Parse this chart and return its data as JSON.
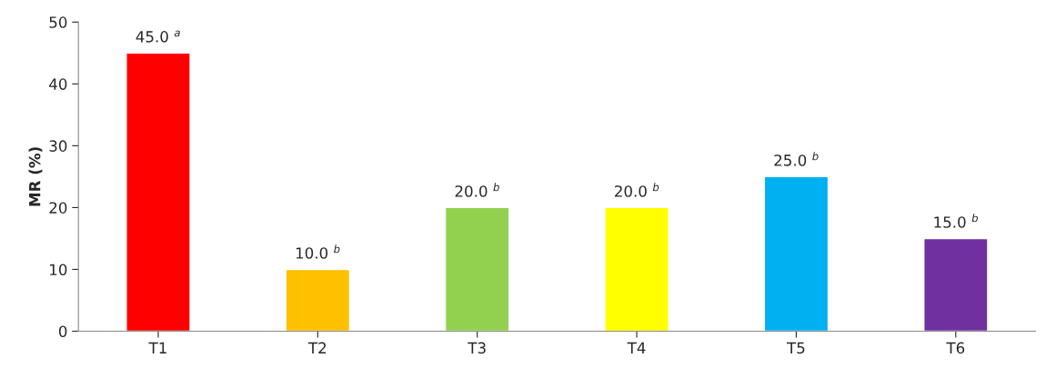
{
  "chart_data": {
    "type": "bar",
    "ylabel": "MR (%)",
    "categories": [
      "T1",
      "T2",
      "T3",
      "T4",
      "T5",
      "T6"
    ],
    "values": [
      45.0,
      10.0,
      20.0,
      20.0,
      25.0,
      15.0
    ],
    "colors": [
      "#ff0000",
      "#ffc000",
      "#92d050",
      "#ffff00",
      "#00b0f0",
      "#7030a0"
    ],
    "value_labels": [
      "45.0 $^{a}$",
      "10.0 $^{b}$",
      "20.0 $^{b}$",
      "20.0 $^{b}$",
      "25.0 $^{b}$",
      "15.0 $^{b}$"
    ],
    "ylim": [
      0,
      50
    ],
    "yticks": [
      0,
      10,
      20,
      30,
      40,
      50
    ],
    "grid": false,
    "legend": false
  }
}
